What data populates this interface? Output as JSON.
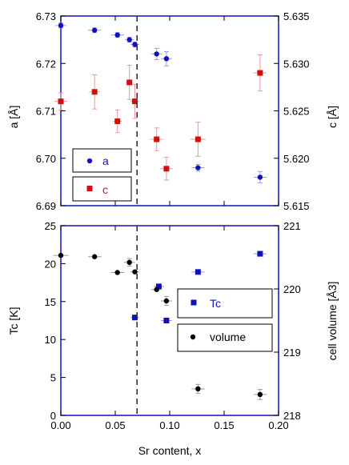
{
  "chart_data": [
    {
      "type": "scatter",
      "xlabel": "",
      "ylabel": "a [Å]",
      "y2label": "c [Å]",
      "xlim": [
        0.0,
        0.2
      ],
      "ylim": [
        6.69,
        6.73
      ],
      "y2lim": [
        5.615,
        5.635
      ],
      "y_ticks": [
        "6.69",
        "6.70",
        "6.71",
        "6.72",
        "6.73"
      ],
      "y2_ticks": [
        "5.615",
        "5.620",
        "5.625",
        "5.630",
        "5.635"
      ],
      "vline_x": 0.07,
      "legend": {
        "position": "bottom-left",
        "entries": [
          "a",
          "c"
        ]
      },
      "series": [
        {
          "name": "a",
          "axis": "left",
          "color": "#1010c0",
          "marker": "circle",
          "x": [
            0.0,
            0.031,
            0.052,
            0.063,
            0.068,
            0.088,
            0.097,
            0.126,
            0.183
          ],
          "y": [
            6.728,
            6.727,
            6.726,
            6.725,
            6.724,
            6.722,
            6.721,
            6.698,
            6.696
          ],
          "xerr": [
            0.005,
            0.006,
            0.006,
            0.004,
            0.004,
            0.005,
            0.005,
            0.006,
            0.006
          ],
          "yerr": [
            0.0005,
            0.0005,
            0.0005,
            0.0005,
            0.0005,
            0.0012,
            0.0015,
            0.0007,
            0.0012
          ]
        },
        {
          "name": "c",
          "axis": "right",
          "color": "#d01010",
          "marker": "square",
          "x": [
            0.0,
            0.031,
            0.052,
            0.063,
            0.068,
            0.088,
            0.097,
            0.126,
            0.183
          ],
          "y": [
            5.626,
            5.627,
            5.6239,
            5.628,
            5.626,
            5.622,
            5.6189,
            5.622,
            5.629
          ],
          "xerr": [
            0.006,
            0.005,
            0.004,
            0.003,
            0.004,
            0.006,
            0.006,
            0.007,
            0.006
          ],
          "yerr": [
            0.0009,
            0.0018,
            0.0012,
            0.0018,
            0.0018,
            0.0012,
            0.0012,
            0.0018,
            0.0019
          ]
        }
      ]
    },
    {
      "type": "scatter",
      "xlabel": "Sr content, x",
      "ylabel": "Tc [K]",
      "y2label": "cell volume [Å3]",
      "xlim": [
        0.0,
        0.2
      ],
      "ylim": [
        0,
        25
      ],
      "y2lim": [
        218,
        221
      ],
      "x_ticks": [
        "0.00",
        "0.05",
        "0.10",
        "0.15",
        "0.20"
      ],
      "y_ticks": [
        "0",
        "5",
        "10",
        "15",
        "20",
        "25"
      ],
      "y2_ticks": [
        "218",
        "219",
        "220",
        "221"
      ],
      "vline_x": 0.07,
      "legend": {
        "position": "right",
        "entries": [
          "Tc",
          "volume"
        ]
      },
      "series": [
        {
          "name": "Tc",
          "axis": "left",
          "color": "#1010c0",
          "marker": "square",
          "x": [
            0.068,
            0.09,
            0.097,
            0.126,
            0.183
          ],
          "y": [
            12.9,
            17.0,
            12.5,
            18.9,
            21.3
          ],
          "xerr": [
            0.004,
            0.005,
            0.005,
            0.006,
            0.006
          ],
          "yerr": [
            0,
            0,
            0,
            0,
            0
          ]
        },
        {
          "name": "volume",
          "axis": "right",
          "color": "#000000",
          "marker": "circle",
          "x": [
            0.0,
            0.031,
            0.052,
            0.063,
            0.068,
            0.088,
            0.097,
            0.126,
            0.183
          ],
          "y": [
            220.53,
            220.51,
            220.26,
            220.42,
            220.27,
            219.99,
            219.81,
            218.42,
            218.33
          ],
          "xerr": [
            0.007,
            0.006,
            0.006,
            0.005,
            0.004,
            0.005,
            0.005,
            0.006,
            0.006
          ],
          "yerr": [
            0,
            0,
            0,
            0.06,
            0,
            0,
            0.07,
            0.07,
            0.08
          ]
        }
      ]
    }
  ]
}
